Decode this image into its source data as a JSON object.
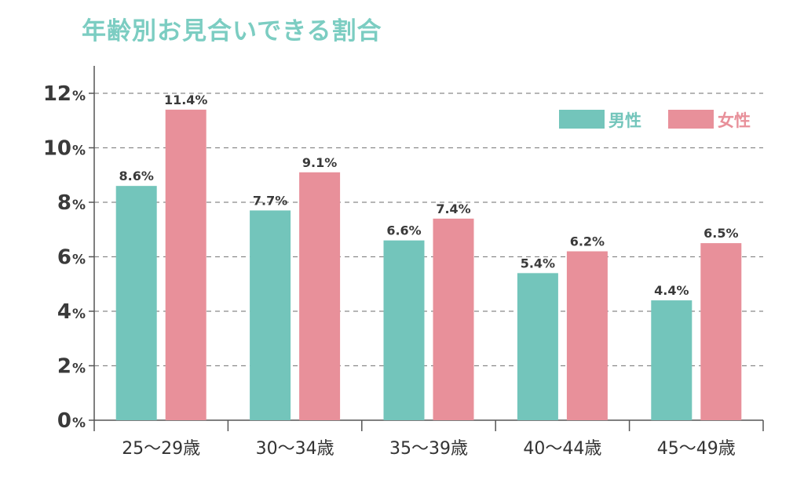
{
  "colors": {
    "male": "#73c5bb",
    "female": "#e8909a",
    "title": "#7ccdc2",
    "grid": "#8a8a8a"
  },
  "chart_data": {
    "type": "bar",
    "title": "年齢別お見合いできる割合",
    "categories": [
      "25〜29歳",
      "30〜34歳",
      "35〜39歳",
      "40〜44歳",
      "45〜49歳"
    ],
    "series": [
      {
        "name": "男性",
        "values": [
          8.6,
          7.7,
          6.6,
          5.4,
          4.4
        ],
        "labels": [
          "8.6%",
          "7.7%",
          "6.6%",
          "5.4%",
          "4.4%"
        ]
      },
      {
        "name": "女性",
        "values": [
          11.4,
          9.1,
          7.4,
          6.2,
          6.5
        ],
        "labels": [
          "11.4%",
          "9.1%",
          "7.4%",
          "6.2%",
          "6.5%"
        ]
      }
    ],
    "yticks": [
      {
        "value": 0,
        "num": "0",
        "unit": "%"
      },
      {
        "value": 2,
        "num": "2",
        "unit": "%"
      },
      {
        "value": 4,
        "num": "4",
        "unit": "%"
      },
      {
        "value": 6,
        "num": "6",
        "unit": "%"
      },
      {
        "value": 8,
        "num": "8",
        "unit": "%"
      },
      {
        "value": 10,
        "num": "10",
        "unit": "%"
      },
      {
        "value": 12,
        "num": "12",
        "unit": "%"
      }
    ],
    "ylim": [
      0,
      13
    ],
    "grid": "dashed",
    "legend_position": "top-right",
    "xlabel": "",
    "ylabel": ""
  }
}
